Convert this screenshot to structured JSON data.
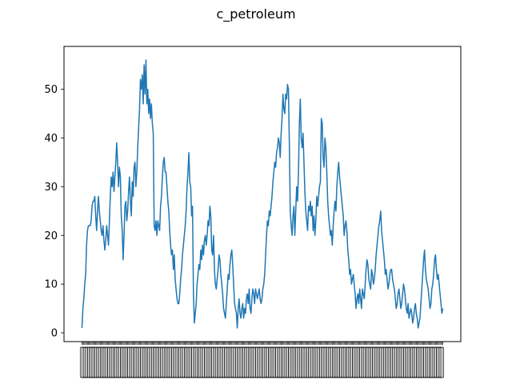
{
  "chart_data": {
    "type": "line",
    "title": "c_petroleum",
    "xlabel": "",
    "ylabel": "",
    "ylim": [
      -1.8,
      58.8
    ],
    "yticks": [
      0,
      10,
      20,
      30,
      40,
      50
    ],
    "grid": false,
    "legend": "none",
    "line_color": "#1f77b4",
    "x_tick_labels_note": "dense overlapping x tick labels (unreadable)",
    "series": [
      {
        "values": [
          1,
          5,
          7,
          10,
          12,
          18,
          21,
          22,
          22,
          22,
          23,
          26,
          27,
          27,
          28,
          24,
          21,
          25,
          28,
          25,
          23,
          21,
          20,
          22,
          19,
          17,
          19,
          22,
          20,
          18,
          23,
          28,
          32,
          30,
          33,
          29,
          32,
          35,
          39,
          35,
          30,
          34,
          32,
          24,
          21,
          15,
          20,
          26,
          27,
          23,
          25,
          29,
          32,
          27,
          24,
          31,
          28,
          34,
          35,
          30,
          33,
          38,
          42,
          46,
          52,
          50,
          53,
          47,
          55,
          49,
          56,
          47,
          50,
          45,
          48,
          44,
          47,
          43,
          41,
          22,
          21,
          23,
          20,
          23,
          22,
          21,
          26,
          28,
          32,
          35,
          36,
          33,
          33,
          30,
          27,
          25,
          21,
          18,
          16,
          17,
          13,
          16,
          11,
          9,
          7,
          6,
          6,
          8,
          11,
          13,
          16,
          18,
          20,
          22,
          25,
          30,
          33,
          37,
          31,
          30,
          24,
          26,
          8,
          2,
          4,
          6,
          10,
          12,
          14,
          13,
          17,
          15,
          18,
          16,
          19,
          20,
          18,
          20,
          23,
          22,
          26,
          24,
          17,
          16,
          20,
          13,
          10,
          9,
          11,
          13,
          16,
          15,
          12,
          10,
          8,
          5,
          4,
          3,
          6,
          9,
          12,
          11,
          14,
          16,
          17,
          14,
          10,
          6,
          5,
          4,
          1,
          5,
          7,
          4,
          3,
          5,
          6,
          3,
          5,
          4,
          7,
          8,
          6,
          9,
          5,
          4,
          7,
          9,
          8,
          6,
          9,
          8,
          7,
          8,
          9,
          7,
          6,
          7,
          9,
          10,
          12,
          16,
          20,
          23,
          22,
          25,
          24,
          26,
          28,
          31,
          33,
          35,
          34,
          37,
          38,
          40,
          39,
          36,
          41,
          44,
          49,
          46,
          45,
          49,
          48,
          51,
          50,
          39,
          25,
          22,
          20,
          24,
          26,
          20,
          25,
          30,
          27,
          33,
          43,
          48,
          40,
          38,
          41,
          35,
          29,
          25,
          23,
          21,
          26,
          25,
          27,
          24,
          26,
          21,
          24,
          20,
          23,
          28,
          26,
          28,
          30,
          31,
          44,
          43,
          36,
          34,
          40,
          38,
          33,
          27,
          24,
          22,
          20,
          21,
          18,
          22,
          25,
          27,
          25,
          30,
          33,
          35,
          32,
          30,
          28,
          26,
          24,
          20,
          22,
          23,
          21,
          17,
          15,
          12,
          13,
          10,
          11,
          12,
          10,
          8,
          5,
          7,
          8,
          6,
          9,
          7,
          5,
          9,
          8,
          7,
          10,
          13,
          15,
          14,
          11,
          10,
          9,
          13,
          12,
          10,
          11,
          13,
          16,
          18,
          20,
          22,
          23,
          25,
          21,
          19,
          17,
          15,
          12,
          13,
          11,
          9,
          10,
          12,
          13,
          13,
          11,
          10,
          9,
          7,
          5,
          6,
          8,
          9,
          7,
          5,
          6,
          8,
          10,
          9,
          7,
          5,
          4,
          6,
          3,
          4,
          5,
          4,
          2,
          3,
          5,
          6,
          4,
          3,
          1,
          2,
          3,
          6,
          9,
          12,
          15,
          17,
          13,
          11,
          10,
          9,
          7,
          5,
          6,
          9,
          10,
          12,
          15,
          16,
          13,
          11,
          12,
          10,
          8,
          6,
          4,
          5
        ]
      }
    ]
  }
}
